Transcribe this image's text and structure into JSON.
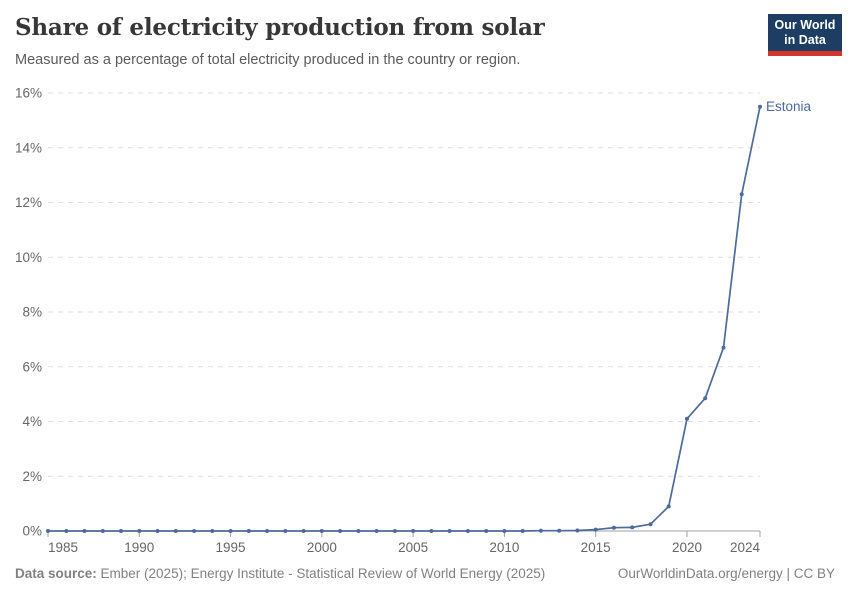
{
  "header": {
    "title": "Share of electricity production from solar",
    "subtitle": "Measured as a percentage of total electricity produced in the country or region.",
    "logo": {
      "line1": "Our World",
      "line2": "in Data"
    }
  },
  "chart_data": {
    "type": "line",
    "title": "Share of electricity production from solar",
    "xlabel": "",
    "ylabel": "",
    "xlim": [
      1985,
      2024
    ],
    "ylim": [
      0,
      16
    ],
    "x_ticks": [
      1985,
      1990,
      1995,
      2000,
      2005,
      2010,
      2015,
      2020,
      2024
    ],
    "y_ticks": [
      0,
      2,
      4,
      6,
      8,
      10,
      12,
      14,
      16
    ],
    "y_tick_suffix": "%",
    "grid": "horizontal-dashed",
    "legend_position": "end-of-line-label",
    "series": [
      {
        "name": "Estonia",
        "color": "#4C6A9C",
        "x": [
          1985,
          1986,
          1987,
          1988,
          1989,
          1990,
          1991,
          1992,
          1993,
          1994,
          1995,
          1996,
          1997,
          1998,
          1999,
          2000,
          2001,
          2002,
          2003,
          2004,
          2005,
          2006,
          2007,
          2008,
          2009,
          2010,
          2011,
          2012,
          2013,
          2014,
          2015,
          2016,
          2017,
          2018,
          2019,
          2020,
          2021,
          2022,
          2023,
          2024
        ],
        "values": [
          0,
          0,
          0,
          0,
          0,
          0,
          0,
          0,
          0,
          0,
          0,
          0,
          0,
          0,
          0,
          0,
          0,
          0,
          0,
          0,
          0,
          0,
          0,
          0,
          0,
          0,
          0,
          0.01,
          0.01,
          0.02,
          0.05,
          0.12,
          0.13,
          0.25,
          0.9,
          4.1,
          4.85,
          6.7,
          12.3,
          15.5
        ]
      }
    ]
  },
  "colors": {
    "grid": "#dedede",
    "axis": "#a0a0a0",
    "tick_text": "#666666",
    "line": "#4C6A9C",
    "logo_bg": "#1d3d63",
    "logo_accent": "#d0362a"
  },
  "footer": {
    "source_label": "Data source:",
    "source_text": " Ember (2025); Energy Institute - Statistical Review of World Energy (2025)",
    "credit": "OurWorldinData.org/energy | CC BY"
  }
}
